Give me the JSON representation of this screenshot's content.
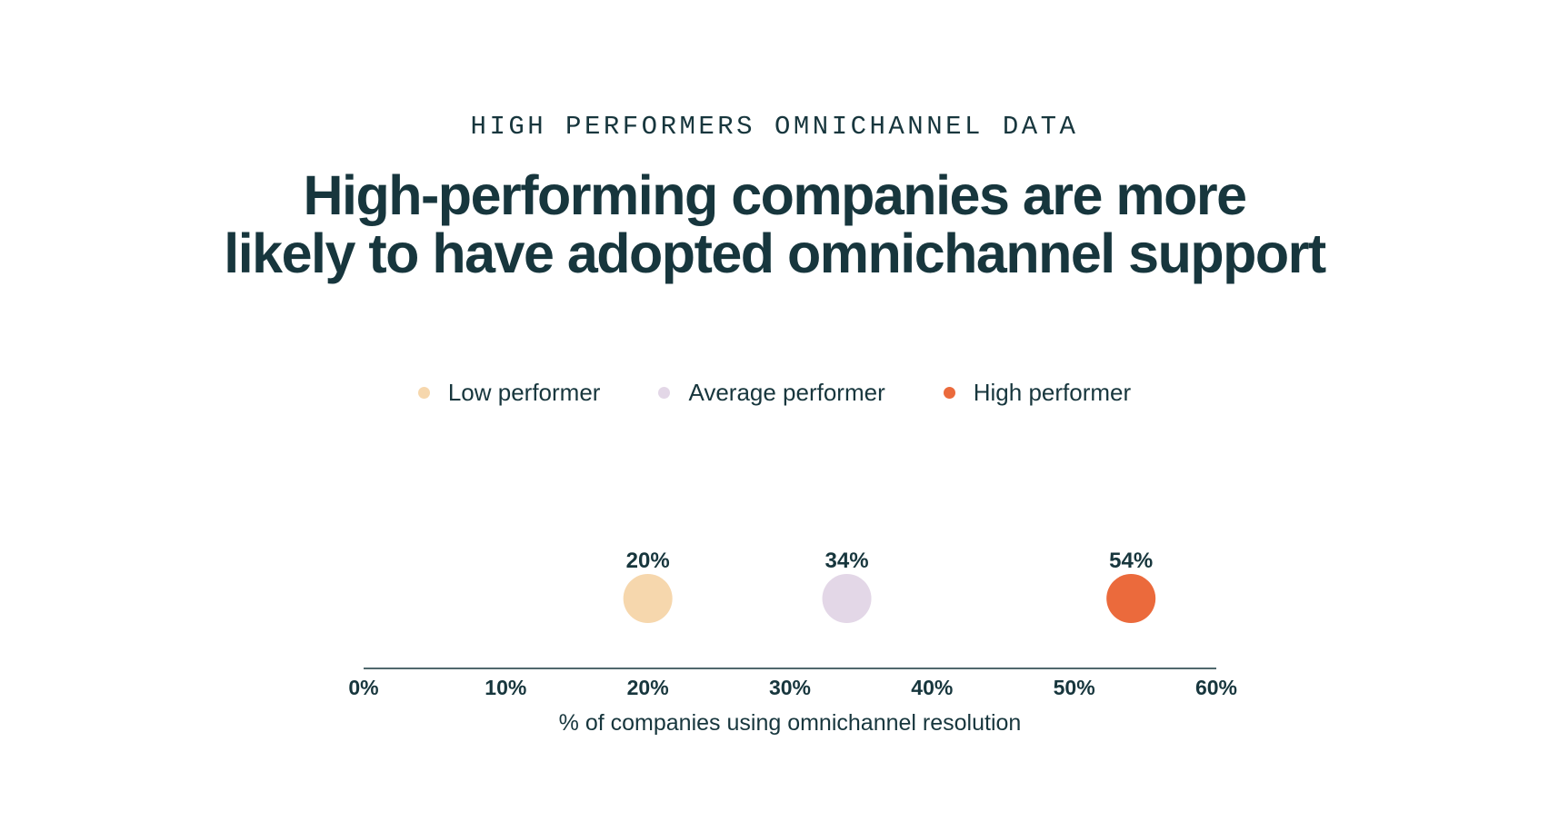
{
  "eyebrow": "HIGH PERFORMERS OMNICHANNEL DATA",
  "headline": {
    "line1": "High-performing companies are more",
    "line2": "likely to have adopted omnichannel support"
  },
  "chart_data": {
    "type": "scatter",
    "title": "High-performing companies are more likely to have adopted omnichannel support",
    "xlabel": "% of companies using omnichannel resolution",
    "ylabel": "",
    "xlim": [
      0,
      60
    ],
    "x_ticks": [
      "0%",
      "10%",
      "20%",
      "30%",
      "40%",
      "50%",
      "60%"
    ],
    "x_tick_values": [
      0,
      10,
      20,
      30,
      40,
      50,
      60
    ],
    "grid": false,
    "legend_position": "top-center",
    "series": [
      {
        "name": "Low performer",
        "x": 20,
        "label": "20%",
        "color": "#f6d7ad"
      },
      {
        "name": "Average performer",
        "x": 34,
        "label": "34%",
        "color": "#e3d7e7"
      },
      {
        "name": "High performer",
        "x": 54,
        "label": "54%",
        "color": "#eb6a3c"
      }
    ],
    "axis_color": "#17363d"
  }
}
